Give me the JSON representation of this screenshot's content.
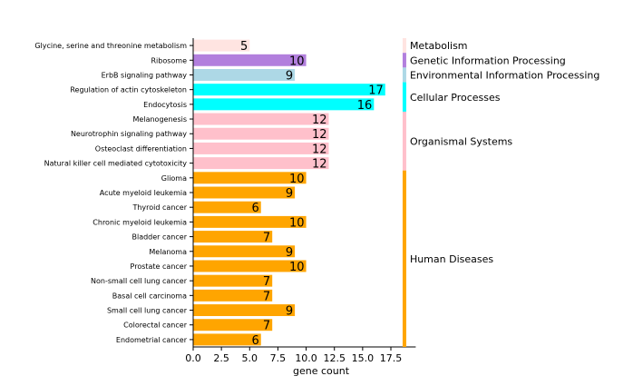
{
  "chart_data": {
    "type": "bar",
    "orientation": "horizontal",
    "xlabel": "gene count",
    "xlim": [
      0,
      19.7
    ],
    "xticks": [
      "0.0",
      "2.5",
      "5.0",
      "7.5",
      "10.0",
      "12.5",
      "15.0",
      "17.5"
    ],
    "grid": false,
    "categories": [
      "Glycine, serine and threonine metabolism",
      "Ribosome",
      "ErbB signaling pathway",
      "Regulation of actin cytoskeleton",
      "Endocytosis",
      "Melanogenesis",
      "Neurotrophin signaling pathway",
      "Osteoclast differentiation",
      "Natural killer cell mediated cytotoxicity",
      "Glioma",
      "Acute myeloid leukemia",
      "Thyroid cancer",
      "Chronic myeloid leukemia",
      "Bladder cancer",
      "Melanoma",
      "Prostate cancer",
      "Non-small cell lung cancer",
      "Basal cell carcinoma",
      "Small cell lung cancer",
      "Colorectal cancer",
      "Endometrial cancer"
    ],
    "values": [
      5,
      10,
      9,
      17,
      16,
      12,
      12,
      12,
      12,
      10,
      9,
      6,
      10,
      7,
      9,
      10,
      7,
      7,
      9,
      7,
      6
    ],
    "groups": [
      {
        "name": "Metabolism",
        "color": "#ffe4e1",
        "count": 1
      },
      {
        "name": "Genetic Information Processing",
        "color": "#b27fdd",
        "count": 1
      },
      {
        "name": "Environmental Information Processing",
        "color": "#add8e6",
        "count": 1
      },
      {
        "name": "Cellular Processes",
        "color": "#00ffff",
        "count": 2
      },
      {
        "name": "Organismal Systems",
        "color": "#ffc0cb",
        "count": 4
      },
      {
        "name": "Human Diseases",
        "color": "#ffa500",
        "count": 12
      }
    ],
    "group_marker_x": 18.7
  }
}
